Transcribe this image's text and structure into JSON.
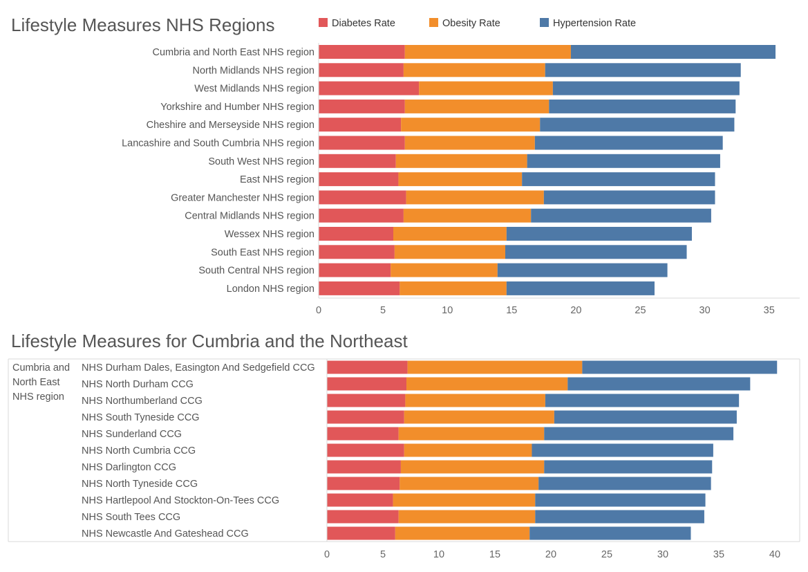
{
  "colors": {
    "diabetes": "#e15759",
    "obesity": "#f28e2b",
    "hypertension": "#4e79a7"
  },
  "legend": [
    {
      "key": "diabetes",
      "label": "Diabetes Rate"
    },
    {
      "key": "obesity",
      "label": "Obesity Rate"
    },
    {
      "key": "hypertension",
      "label": "Hypertension Rate"
    }
  ],
  "chart_data": [
    {
      "type": "bar",
      "orientation": "horizontal",
      "stacked": true,
      "title": "Lifestyle Measures NHS Regions",
      "xlim": [
        0,
        36
      ],
      "ticks": [
        0,
        5,
        10,
        15,
        20,
        25,
        30,
        35
      ],
      "legend_position": "top",
      "categories": [
        "Cumbria and North East NHS region",
        "North Midlands NHS region",
        "West Midlands NHS region",
        "Yorkshire and Humber NHS region",
        "Cheshire and Merseyside NHS region",
        "Lancashire and South Cumbria NHS region",
        "South West NHS region",
        "East NHS region",
        "Greater Manchester NHS region",
        "Central Midlands NHS region",
        "Wessex NHS region",
        "South East NHS region",
        "South Central NHS region",
        "London NHS region"
      ],
      "series": [
        {
          "name": "Diabetes Rate",
          "key": "diabetes",
          "values": [
            6.7,
            6.6,
            7.8,
            6.7,
            6.4,
            6.7,
            6.0,
            6.2,
            6.8,
            6.6,
            5.8,
            5.9,
            5.6,
            6.3
          ]
        },
        {
          "name": "Obesity Rate",
          "key": "obesity",
          "values": [
            12.9,
            11.0,
            10.4,
            11.2,
            10.8,
            10.1,
            10.2,
            9.6,
            10.7,
            9.9,
            8.8,
            8.6,
            8.3,
            8.3
          ]
        },
        {
          "name": "Hypertension Rate",
          "key": "hypertension",
          "values": [
            15.9,
            15.2,
            14.5,
            14.5,
            15.1,
            14.6,
            15.0,
            15.0,
            13.3,
            14.0,
            14.4,
            14.1,
            13.2,
            11.5
          ]
        }
      ]
    },
    {
      "type": "bar",
      "orientation": "horizontal",
      "stacked": true,
      "title": "Lifestyle Measures for Cumbria and the Northeast",
      "group_label": [
        "Cumbria and",
        "North East",
        "NHS region"
      ],
      "xlim": [
        0,
        42
      ],
      "ticks": [
        0,
        5,
        10,
        15,
        20,
        25,
        30,
        35,
        40
      ],
      "categories": [
        "NHS Durham Dales, Easington And Sedgefield CCG",
        "NHS North Durham CCG",
        "NHS Northumberland CCG",
        "NHS South Tyneside CCG",
        "NHS Sunderland CCG",
        "NHS North Cumbria CCG",
        "NHS Darlington CCG",
        "NHS North Tyneside CCG",
        "NHS Hartlepool And Stockton-On-Tees CCG",
        "NHS South Tees CCG",
        "NHS Newcastle And Gateshead CCG"
      ],
      "series": [
        {
          "name": "Diabetes Rate",
          "key": "diabetes",
          "values": [
            7.2,
            7.1,
            7.0,
            6.9,
            6.4,
            6.9,
            6.6,
            6.5,
            5.9,
            6.4,
            6.1
          ]
        },
        {
          "name": "Obesity Rate",
          "key": "obesity",
          "values": [
            15.6,
            14.4,
            12.5,
            13.4,
            13.0,
            11.4,
            12.8,
            12.4,
            12.7,
            12.2,
            12.0
          ]
        },
        {
          "name": "Hypertension Rate",
          "key": "hypertension",
          "values": [
            17.4,
            16.3,
            17.3,
            16.3,
            16.9,
            16.2,
            15.0,
            15.4,
            15.2,
            15.1,
            14.4
          ]
        }
      ]
    }
  ]
}
